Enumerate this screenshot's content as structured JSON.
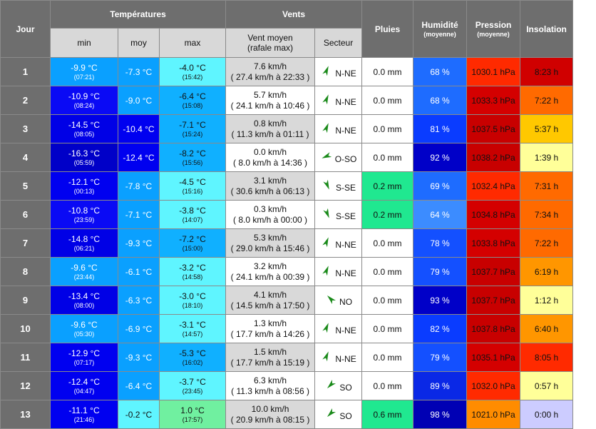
{
  "header": {
    "jour": "Jour",
    "temperatures": "Températures",
    "vents": "Vents",
    "pluies": "Pluies",
    "humidite": "Humidité",
    "humidite_sub": "(moyenne)",
    "pression": "Pression",
    "pression_sub": "(moyenne)",
    "insolation": "Insolation",
    "min": "min",
    "moy": "moy",
    "max": "max",
    "vent_moyen_line1": "Vent moyen",
    "vent_moyen_line2": "(rafale max)",
    "secteur": "Secteur"
  },
  "rows": [
    {
      "day": "1",
      "tmin": "-9.9 °C",
      "tmin_time": "(07:21)",
      "tmoy": "-7.3 °C",
      "tmax": "-4.0 °C",
      "tmax_time": "(15:42)",
      "wind": "7.6 km/h",
      "gust": "( 27.4 km/h à 22:33 )",
      "dir": "N-NE",
      "rain": "0.0 mm",
      "hum": "68 %",
      "pres": "1030.1 hPa",
      "sun": "8:23 h",
      "colors": {
        "tmin": "#0aa0ff",
        "tmin_text": "#ffffff",
        "tmoy": "#0aa0ff",
        "tmoy_text": "#ffffff",
        "tmax": "#5ff5ff",
        "tmax_text": "#111111",
        "wind": "#d9d9d9",
        "rain": "#ffffff",
        "hum": "#1e6cff",
        "pres": "#ff2a00",
        "sun": "#d00000"
      }
    },
    {
      "day": "2",
      "tmin": "-10.9 °C",
      "tmin_time": "(08:24)",
      "tmoy": "-9.0 °C",
      "tmax": "-6.4 °C",
      "tmax_time": "(15:08)",
      "wind": "5.7 km/h",
      "gust": "( 24.1 km/h à 10:46 )",
      "dir": "N-NE",
      "rain": "0.0 mm",
      "hum": "68 %",
      "pres": "1033.3 hPa",
      "sun": "7:22 h",
      "colors": {
        "tmin": "#0a0af5",
        "tmin_text": "#ffffff",
        "tmoy": "#0aa0ff",
        "tmoy_text": "#ffffff",
        "tmax": "#10b0ff",
        "tmax_text": "#111111",
        "wind": "#ffffff",
        "rain": "#ffffff",
        "hum": "#1e6cff",
        "pres": "#d40000",
        "sun": "#ff6a00"
      }
    },
    {
      "day": "3",
      "tmin": "-14.5 °C",
      "tmin_time": "(08:05)",
      "tmoy": "-10.4 °C",
      "tmax": "-7.1 °C",
      "tmax_time": "(15:24)",
      "wind": "0.8 km/h",
      "gust": "( 11.3 km/h à 01:11 )",
      "dir": "N-NE",
      "rain": "0.0 mm",
      "hum": "81 %",
      "pres": "1037.5 hPa",
      "sun": "5:37 h",
      "colors": {
        "tmin": "#0000e6",
        "tmin_text": "#ffffff",
        "tmoy": "#0000f0",
        "tmoy_text": "#ffffff",
        "tmax": "#10b0ff",
        "tmax_text": "#111111",
        "wind": "#d9d9d9",
        "rain": "#ffffff",
        "hum": "#0a3cff",
        "pres": "#c80000",
        "sun": "#ffc800"
      }
    },
    {
      "day": "4",
      "tmin": "-16.3 °C",
      "tmin_time": "(05:59)",
      "tmoy": "-12.4 °C",
      "tmax": "-8.2 °C",
      "tmax_time": "(15:56)",
      "wind": "0.0 km/h",
      "gust": "( 8.0 km/h à 14:36 )",
      "dir": "O-SO",
      "rain": "0.0 mm",
      "hum": "92 %",
      "pres": "1038.2 hPa",
      "sun": "1:39 h",
      "colors": {
        "tmin": "#0000c8",
        "tmin_text": "#ffffff",
        "tmoy": "#0000f0",
        "tmoy_text": "#ffffff",
        "tmax": "#10b0ff",
        "tmax_text": "#111111",
        "wind": "#ffffff",
        "rain": "#ffffff",
        "hum": "#0000c8",
        "pres": "#c80000",
        "sun": "#ffff99"
      }
    },
    {
      "day": "5",
      "tmin": "-12.1 °C",
      "tmin_time": "(00:13)",
      "tmoy": "-7.8 °C",
      "tmax": "-4.5 °C",
      "tmax_time": "(15:16)",
      "wind": "3.1 km/h",
      "gust": "( 30.6 km/h à 06:13 )",
      "dir": "S-SE",
      "rain": "0.2 mm",
      "hum": "69 %",
      "pres": "1032.4 hPa",
      "sun": "7:31 h",
      "colors": {
        "tmin": "#0000f0",
        "tmin_text": "#ffffff",
        "tmoy": "#0aa0ff",
        "tmoy_text": "#ffffff",
        "tmax": "#5ff5ff",
        "tmax_text": "#111111",
        "wind": "#d9d9d9",
        "rain": "#20e890",
        "hum": "#1e6cff",
        "pres": "#ff2a00",
        "sun": "#ff6a00"
      }
    },
    {
      "day": "6",
      "tmin": "-10.8 °C",
      "tmin_time": "(23:59)",
      "tmoy": "-7.1 °C",
      "tmax": "-3.8 °C",
      "tmax_time": "(14:07)",
      "wind": "0.3 km/h",
      "gust": "( 8.0 km/h à 00:00 )",
      "dir": "S-SE",
      "rain": "0.2 mm",
      "hum": "64 %",
      "pres": "1034.8 hPa",
      "sun": "7:34 h",
      "colors": {
        "tmin": "#0a0af5",
        "tmin_text": "#ffffff",
        "tmoy": "#0aa0ff",
        "tmoy_text": "#ffffff",
        "tmax": "#5ff5ff",
        "tmax_text": "#111111",
        "wind": "#ffffff",
        "rain": "#20e890",
        "hum": "#3c8cff",
        "pres": "#d40000",
        "sun": "#ff6a00"
      }
    },
    {
      "day": "7",
      "tmin": "-14.8 °C",
      "tmin_time": "(06:21)",
      "tmoy": "-9.3 °C",
      "tmax": "-7.2 °C",
      "tmax_time": "(15:00)",
      "wind": "5.3 km/h",
      "gust": "( 29.0 km/h à 15:46 )",
      "dir": "N-NE",
      "rain": "0.0 mm",
      "hum": "78 %",
      "pres": "1033.8 hPa",
      "sun": "7:22 h",
      "colors": {
        "tmin": "#0000e6",
        "tmin_text": "#ffffff",
        "tmoy": "#0aa0ff",
        "tmoy_text": "#ffffff",
        "tmax": "#10b0ff",
        "tmax_text": "#111111",
        "wind": "#d9d9d9",
        "rain": "#ffffff",
        "hum": "#1450ff",
        "pres": "#d40000",
        "sun": "#ff6a00"
      }
    },
    {
      "day": "8",
      "tmin": "-9.6 °C",
      "tmin_time": "(23:44)",
      "tmoy": "-6.1 °C",
      "tmax": "-3.2 °C",
      "tmax_time": "(14:58)",
      "wind": "3.2 km/h",
      "gust": "( 24.1 km/h à 00:39 )",
      "dir": "N-NE",
      "rain": "0.0 mm",
      "hum": "79 %",
      "pres": "1037.7 hPa",
      "sun": "6:19 h",
      "colors": {
        "tmin": "#0aa0ff",
        "tmin_text": "#ffffff",
        "tmoy": "#0aa0ff",
        "tmoy_text": "#ffffff",
        "tmax": "#5ff5ff",
        "tmax_text": "#111111",
        "wind": "#ffffff",
        "rain": "#ffffff",
        "hum": "#1450ff",
        "pres": "#c80000",
        "sun": "#ff9600"
      }
    },
    {
      "day": "9",
      "tmin": "-13.4 °C",
      "tmin_time": "(08:00)",
      "tmoy": "-6.3 °C",
      "tmax": "-3.0 °C",
      "tmax_time": "(18:10)",
      "wind": "4.1 km/h",
      "gust": "( 14.5 km/h à 17:50 )",
      "dir": "NO",
      "rain": "0.0 mm",
      "hum": "93 %",
      "pres": "1037.7 hPa",
      "sun": "1:12 h",
      "colors": {
        "tmin": "#0000e6",
        "tmin_text": "#ffffff",
        "tmoy": "#0aa0ff",
        "tmoy_text": "#ffffff",
        "tmax": "#5ff5ff",
        "tmax_text": "#111111",
        "wind": "#d9d9d9",
        "rain": "#ffffff",
        "hum": "#0000c8",
        "pres": "#c80000",
        "sun": "#ffff99"
      }
    },
    {
      "day": "10",
      "tmin": "-9.6 °C",
      "tmin_time": "(05:30)",
      "tmoy": "-6.9 °C",
      "tmax": "-3.1 °C",
      "tmax_time": "(14:57)",
      "wind": "1.3 km/h",
      "gust": "( 17.7 km/h à 14:26 )",
      "dir": "N-NE",
      "rain": "0.0 mm",
      "hum": "82 %",
      "pres": "1037.8 hPa",
      "sun": "6:40 h",
      "colors": {
        "tmin": "#0aa0ff",
        "tmin_text": "#ffffff",
        "tmoy": "#0aa0ff",
        "tmoy_text": "#ffffff",
        "tmax": "#5ff5ff",
        "tmax_text": "#111111",
        "wind": "#ffffff",
        "rain": "#ffffff",
        "hum": "#0a3cff",
        "pres": "#c80000",
        "sun": "#ff9600"
      }
    },
    {
      "day": "11",
      "tmin": "-12.9 °C",
      "tmin_time": "(07:17)",
      "tmoy": "-9.3 °C",
      "tmax": "-5.3 °C",
      "tmax_time": "(16:02)",
      "wind": "1.5 km/h",
      "gust": "( 17.7 km/h à 15:19 )",
      "dir": "N-NE",
      "rain": "0.0 mm",
      "hum": "79 %",
      "pres": "1035.1 hPa",
      "sun": "8:05 h",
      "colors": {
        "tmin": "#0000f0",
        "tmin_text": "#ffffff",
        "tmoy": "#0aa0ff",
        "tmoy_text": "#ffffff",
        "tmax": "#10b0ff",
        "tmax_text": "#111111",
        "wind": "#d9d9d9",
        "rain": "#ffffff",
        "hum": "#1450ff",
        "pres": "#d40000",
        "sun": "#ff2a00"
      }
    },
    {
      "day": "12",
      "tmin": "-12.4 °C",
      "tmin_time": "(04:47)",
      "tmoy": "-6.4 °C",
      "tmax": "-3.7 °C",
      "tmax_time": "(23:45)",
      "wind": "6.3 km/h",
      "gust": "( 11.3 km/h à 08:56 )",
      "dir": "SO",
      "rain": "0.0 mm",
      "hum": "89 %",
      "pres": "1032.0 hPa",
      "sun": "0:57 h",
      "colors": {
        "tmin": "#0000f0",
        "tmin_text": "#ffffff",
        "tmoy": "#0aa0ff",
        "tmoy_text": "#ffffff",
        "tmax": "#5ff5ff",
        "tmax_text": "#111111",
        "wind": "#ffffff",
        "rain": "#ffffff",
        "hum": "#0a28e6",
        "pres": "#ff2a00",
        "sun": "#ffff99"
      }
    },
    {
      "day": "13",
      "tmin": "-11.1 °C",
      "tmin_time": "(21:46)",
      "tmoy": "-0.2 °C",
      "tmax": "1.0 °C",
      "tmax_time": "(17:57)",
      "wind": "10.0 km/h",
      "gust": "( 20.9 km/h à 08:15 )",
      "dir": "SO",
      "rain": "0.6 mm",
      "hum": "98 %",
      "pres": "1021.0 hPa",
      "sun": "0:00 h",
      "colors": {
        "tmin": "#0000f0",
        "tmin_text": "#ffffff",
        "tmoy": "#5ff5ff",
        "tmoy_text": "#111111",
        "tmax": "#70f0a0",
        "tmax_text": "#111111",
        "wind": "#d9d9d9",
        "rain": "#20e890",
        "hum": "#0000b4",
        "pres": "#ff8c00",
        "sun": "#ccccff"
      }
    }
  ],
  "direction_angles": {
    "N-NE": 22.5,
    "O-SO": 247.5,
    "S-SE": 157.5,
    "NO": 315,
    "SO": 225
  },
  "arrow_color": "#1a8a1a",
  "dark_header_color": "#6e6e6e"
}
